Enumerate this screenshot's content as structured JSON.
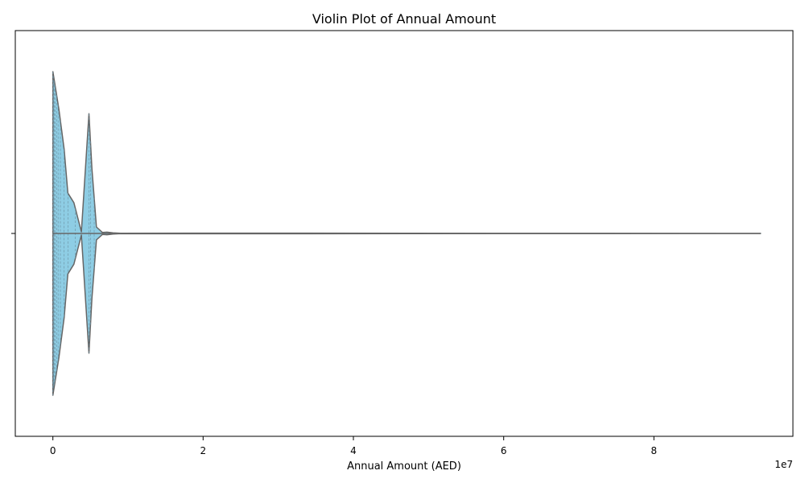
{
  "chart_data": {
    "type": "violin",
    "title": "Violin Plot of Annual Amount",
    "xlabel": "Annual Amount (AED)",
    "ylabel": "",
    "x_offset_label": "1e7",
    "xlim": [
      -0.5,
      9.85
    ],
    "x_scale_factor": 10000000,
    "xticks": [
      0,
      2,
      4,
      6,
      8
    ],
    "xtick_labels": [
      "0",
      "2",
      "4",
      "6",
      "8"
    ],
    "grid": false,
    "colors": {
      "fill": "#8ecde4",
      "edge": "#666666",
      "inner": "#6a8fa0"
    },
    "density_profile": [
      {
        "x": 0.0,
        "halfwidth": 1.0
      },
      {
        "x": 0.08,
        "halfwidth": 0.77
      },
      {
        "x": 0.15,
        "halfwidth": 0.52
      },
      {
        "x": 0.2,
        "halfwidth": 0.25
      },
      {
        "x": 0.28,
        "halfwidth": 0.19
      },
      {
        "x": 0.38,
        "halfwidth": 0.01
      },
      {
        "x": 0.48,
        "halfwidth": 0.74
      },
      {
        "x": 0.52,
        "halfwidth": 0.4
      },
      {
        "x": 0.58,
        "halfwidth": 0.04
      },
      {
        "x": 0.66,
        "halfwidth": 0.006
      },
      {
        "x": 0.72,
        "halfwidth": 0.008
      },
      {
        "x": 0.8,
        "halfwidth": 0.004
      },
      {
        "x": 0.9,
        "halfwidth": 0.001
      },
      {
        "x": 1.9,
        "halfwidth": 0.002
      },
      {
        "x": 9.42,
        "halfwidth": 0.0
      }
    ],
    "inner_points_x": [
      0.0,
      0.01,
      0.02,
      0.03,
      0.05,
      0.07,
      0.1,
      0.15,
      0.2,
      0.3,
      0.48,
      0.5,
      0.55,
      0.7,
      0.9,
      1.9,
      9.42
    ]
  }
}
